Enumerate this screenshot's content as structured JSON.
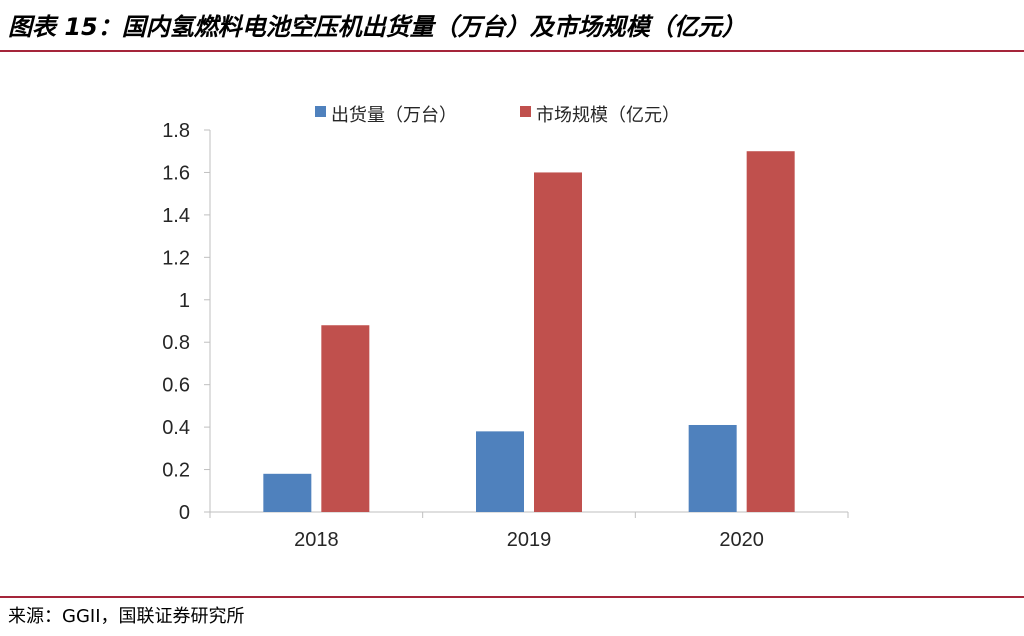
{
  "header": {
    "title": "图表 15：国内氢燃料电池空压机出货量（万台）及市场规模（亿元）"
  },
  "footer": {
    "source": "来源：GGII，国联证券研究所"
  },
  "colors": {
    "accent": "#a5253a",
    "series_blue": "#4f81bd",
    "series_red": "#c0504d",
    "axis": "#bfbfbf",
    "text": "#262626"
  },
  "chart_data": {
    "type": "bar",
    "categories": [
      "2018",
      "2019",
      "2020"
    ],
    "series": [
      {
        "name": "出货量（万台）",
        "values": [
          0.18,
          0.38,
          0.41
        ],
        "color": "#4f81bd"
      },
      {
        "name": "市场规模（亿元）",
        "values": [
          0.88,
          1.6,
          1.7
        ],
        "color": "#c0504d"
      }
    ],
    "ylim": [
      0,
      1.8
    ],
    "yticks": [
      "0",
      "0.2",
      "0.4",
      "0.6",
      "0.8",
      "1",
      "1.2",
      "1.4",
      "1.6",
      "1.8"
    ],
    "xlabel": "",
    "ylabel": "",
    "grid": false,
    "legend_position": "top"
  }
}
